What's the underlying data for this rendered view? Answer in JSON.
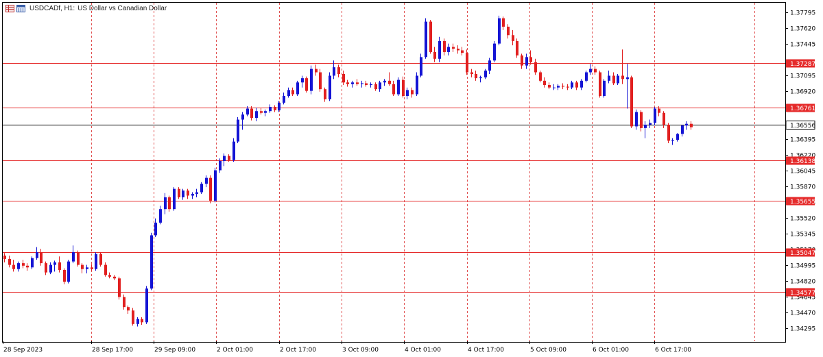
{
  "header": {
    "symbol_timeframe": "USDCADf, H1:",
    "description": "US Dollar vs Canadian Dollar",
    "icons": [
      "table-icon",
      "calendar-icon"
    ]
  },
  "colors": {
    "bull": "#1414d4",
    "bear": "#e11f1f",
    "level_line": "#e52b2b",
    "grid": "#e05050",
    "current_line": "#000000"
  },
  "price_axis": {
    "labels": [
      "1.37795",
      "1.37620",
      "1.37445",
      "1.37095",
      "1.36920",
      "1.36395",
      "1.36220",
      "1.36045",
      "1.35870",
      "1.35695",
      "1.35520",
      "1.35345",
      "1.35170",
      "1.34995",
      "1.34820",
      "1.34645",
      "1.34470",
      "1.34295"
    ]
  },
  "levels": [
    {
      "price": "1.37287",
      "value": 1.37287
    },
    {
      "price": "1.36761",
      "value": 1.36761
    },
    {
      "price": "1.36138",
      "value": 1.36138
    },
    {
      "price": "1.35655",
      "value": 1.35655
    },
    {
      "price": "1.35047",
      "value": 1.35047
    },
    {
      "price": "1.34577",
      "value": 1.34577
    }
  ],
  "current_price": {
    "price": "1.36556",
    "value": 1.36556
  },
  "time_axis": {
    "labels": [
      "28 Sep 2023",
      "28 Sep 17:00",
      "29 Sep 09:00",
      "2 Oct 01:00",
      "2 Oct 17:00",
      "3 Oct 09:00",
      "4 Oct 01:00",
      "4 Oct 17:00",
      "5 Oct 09:00",
      "6 Oct 01:00",
      "6 Oct 17:00"
    ]
  },
  "chart_data": {
    "type": "candlestick",
    "timeframe": "H1",
    "grid": true,
    "y_range": [
      1.3415,
      1.3789
    ],
    "candles": [
      [
        1.3501,
        1.3504,
        1.3493,
        1.3497
      ],
      [
        1.3497,
        1.3501,
        1.3487,
        1.349
      ],
      [
        1.349,
        1.3496,
        1.3482,
        1.3485
      ],
      [
        1.3485,
        1.3494,
        1.3482,
        1.3492
      ],
      [
        1.3492,
        1.3496,
        1.3486,
        1.3489
      ],
      [
        1.3489,
        1.3492,
        1.3483,
        1.3487
      ],
      [
        1.3487,
        1.35,
        1.3485,
        1.3498
      ],
      [
        1.3498,
        1.3511,
        1.3496,
        1.3505
      ],
      [
        1.3505,
        1.3509,
        1.3489,
        1.3492
      ],
      [
        1.3492,
        1.3494,
        1.3478,
        1.3481
      ],
      [
        1.3481,
        1.3493,
        1.3479,
        1.349
      ],
      [
        1.349,
        1.3495,
        1.3482,
        1.3493
      ],
      [
        1.3493,
        1.35,
        1.3481,
        1.3484
      ],
      [
        1.3484,
        1.3486,
        1.3467,
        1.347
      ],
      [
        1.347,
        1.3496,
        1.3468,
        1.3494
      ],
      [
        1.3494,
        1.3513,
        1.3492,
        1.3505
      ],
      [
        1.3505,
        1.3507,
        1.3488,
        1.349
      ],
      [
        1.349,
        1.3492,
        1.348,
        1.3485
      ],
      [
        1.3485,
        1.349,
        1.348,
        1.3487
      ],
      [
        1.3487,
        1.3491,
        1.3483,
        1.3485
      ],
      [
        1.3485,
        1.3505,
        1.3483,
        1.3503
      ],
      [
        1.3503,
        1.3505,
        1.3488,
        1.349
      ],
      [
        1.349,
        1.3493,
        1.3476,
        1.3478
      ],
      [
        1.3478,
        1.3481,
        1.3474,
        1.3476
      ],
      [
        1.3476,
        1.3478,
        1.3472,
        1.3474
      ],
      [
        1.3474,
        1.3476,
        1.3449,
        1.3452
      ],
      [
        1.3452,
        1.3455,
        1.3437,
        1.344
      ],
      [
        1.344,
        1.3442,
        1.3432,
        1.3436
      ],
      [
        1.3436,
        1.3439,
        1.3418,
        1.342
      ],
      [
        1.342,
        1.3428,
        1.3417,
        1.3426
      ],
      [
        1.3426,
        1.3428,
        1.3419,
        1.3422
      ],
      [
        1.3422,
        1.3465,
        1.342,
        1.3462
      ],
      [
        1.3462,
        1.3528,
        1.346,
        1.3525
      ],
      [
        1.3525,
        1.3545,
        1.3523,
        1.354
      ],
      [
        1.354,
        1.356,
        1.3538,
        1.3556
      ],
      [
        1.3556,
        1.3575,
        1.355,
        1.357
      ],
      [
        1.357,
        1.3572,
        1.3553,
        1.3556
      ],
      [
        1.3556,
        1.3582,
        1.3554,
        1.358
      ],
      [
        1.358,
        1.3582,
        1.3568,
        1.357
      ],
      [
        1.357,
        1.358,
        1.3567,
        1.3578
      ],
      [
        1.3578,
        1.358,
        1.3568,
        1.3572
      ],
      [
        1.3572,
        1.3576,
        1.3568,
        1.3574
      ],
      [
        1.3574,
        1.358,
        1.357,
        1.3576
      ],
      [
        1.3576,
        1.3588,
        1.3574,
        1.3586
      ],
      [
        1.3586,
        1.3596,
        1.3582,
        1.3593
      ],
      [
        1.3593,
        1.3596,
        1.3563,
        1.3566
      ],
      [
        1.3566,
        1.3605,
        1.3564,
        1.3602
      ],
      [
        1.3602,
        1.3616,
        1.3599,
        1.3613
      ],
      [
        1.3613,
        1.3622,
        1.3607,
        1.3619
      ],
      [
        1.3619,
        1.3621,
        1.3612,
        1.3614
      ],
      [
        1.3614,
        1.364,
        1.3612,
        1.3636
      ],
      [
        1.3636,
        1.3665,
        1.3634,
        1.3662
      ],
      [
        1.3662,
        1.3671,
        1.365,
        1.3668
      ],
      [
        1.3668,
        1.3678,
        1.3666,
        1.3675
      ],
      [
        1.3675,
        1.3678,
        1.3661,
        1.3664
      ],
      [
        1.3664,
        1.3676,
        1.366,
        1.3672
      ],
      [
        1.3672,
        1.3676,
        1.3668,
        1.367
      ],
      [
        1.367,
        1.3674,
        1.3666,
        1.3672
      ],
      [
        1.3672,
        1.368,
        1.367,
        1.3677
      ],
      [
        1.3677,
        1.3679,
        1.3671,
        1.3673
      ],
      [
        1.3673,
        1.3684,
        1.3671,
        1.3682
      ],
      [
        1.3682,
        1.3694,
        1.368,
        1.369
      ],
      [
        1.369,
        1.37,
        1.3688,
        1.3697
      ],
      [
        1.3697,
        1.37,
        1.369,
        1.3692
      ],
      [
        1.3692,
        1.3708,
        1.369,
        1.3706
      ],
      [
        1.3706,
        1.3714,
        1.37,
        1.3711
      ],
      [
        1.3711,
        1.3713,
        1.3694,
        1.3696
      ],
      [
        1.3696,
        1.3726,
        1.3692,
        1.3722
      ],
      [
        1.3722,
        1.3727,
        1.3714,
        1.3718
      ],
      [
        1.3718,
        1.3722,
        1.3695,
        1.3698
      ],
      [
        1.3698,
        1.37,
        1.3683,
        1.3686
      ],
      [
        1.3686,
        1.3718,
        1.3684,
        1.3714
      ],
      [
        1.3714,
        1.3732,
        1.371,
        1.3724
      ],
      [
        1.3724,
        1.3727,
        1.3712,
        1.3716
      ],
      [
        1.3716,
        1.372,
        1.3703,
        1.3706
      ],
      [
        1.3706,
        1.3709,
        1.3701,
        1.3704
      ],
      [
        1.3704,
        1.3708,
        1.37,
        1.3706
      ],
      [
        1.3706,
        1.371,
        1.3702,
        1.3704
      ],
      [
        1.3704,
        1.3708,
        1.37,
        1.3705
      ],
      [
        1.3705,
        1.3708,
        1.3701,
        1.3703
      ],
      [
        1.3703,
        1.3706,
        1.37,
        1.3704
      ],
      [
        1.3704,
        1.3706,
        1.3696,
        1.3698
      ],
      [
        1.3698,
        1.3708,
        1.3695,
        1.3706
      ],
      [
        1.3706,
        1.371,
        1.3702,
        1.3708
      ],
      [
        1.3708,
        1.3718,
        1.3702,
        1.3704
      ],
      [
        1.3704,
        1.3708,
        1.369,
        1.3692
      ],
      [
        1.3692,
        1.3712,
        1.369,
        1.3709
      ],
      [
        1.3709,
        1.3713,
        1.3688,
        1.369
      ],
      [
        1.369,
        1.37,
        1.3686,
        1.3697
      ],
      [
        1.3697,
        1.37,
        1.3688,
        1.3692
      ],
      [
        1.3692,
        1.3718,
        1.369,
        1.3714
      ],
      [
        1.3714,
        1.374,
        1.3712,
        1.3736
      ],
      [
        1.3736,
        1.3782,
        1.3734,
        1.3778
      ],
      [
        1.3778,
        1.378,
        1.374,
        1.3742
      ],
      [
        1.3742,
        1.3748,
        1.373,
        1.3734
      ],
      [
        1.3734,
        1.376,
        1.373,
        1.3755
      ],
      [
        1.3755,
        1.3758,
        1.3738,
        1.3742
      ],
      [
        1.3742,
        1.3752,
        1.3738,
        1.3748
      ],
      [
        1.3748,
        1.3752,
        1.3742,
        1.3746
      ],
      [
        1.3746,
        1.375,
        1.374,
        1.3744
      ],
      [
        1.3744,
        1.3748,
        1.3738,
        1.3741
      ],
      [
        1.3741,
        1.3745,
        1.3715,
        1.3718
      ],
      [
        1.3718,
        1.3722,
        1.3712,
        1.3716
      ],
      [
        1.3716,
        1.372,
        1.3708,
        1.3711
      ],
      [
        1.3711,
        1.3714,
        1.3706,
        1.3712
      ],
      [
        1.3712,
        1.3722,
        1.371,
        1.372
      ],
      [
        1.372,
        1.3735,
        1.3716,
        1.3732
      ],
      [
        1.3732,
        1.3755,
        1.373,
        1.3752
      ],
      [
        1.3752,
        1.3785,
        1.375,
        1.3782
      ],
      [
        1.3782,
        1.3784,
        1.3768,
        1.3772
      ],
      [
        1.3772,
        1.3775,
        1.3758,
        1.3762
      ],
      [
        1.3762,
        1.3768,
        1.375,
        1.3755
      ],
      [
        1.3755,
        1.3758,
        1.3735,
        1.3738
      ],
      [
        1.3738,
        1.374,
        1.3722,
        1.3726
      ],
      [
        1.3726,
        1.374,
        1.3722,
        1.3736
      ],
      [
        1.3736,
        1.3744,
        1.3727,
        1.373
      ],
      [
        1.373,
        1.3734,
        1.3715,
        1.3718
      ],
      [
        1.3718,
        1.372,
        1.3706,
        1.3708
      ],
      [
        1.3708,
        1.3712,
        1.37,
        1.3703
      ],
      [
        1.3703,
        1.3706,
        1.3698,
        1.37
      ],
      [
        1.37,
        1.3704,
        1.3697,
        1.37
      ],
      [
        1.37,
        1.3704,
        1.3697,
        1.3702
      ],
      [
        1.3702,
        1.3705,
        1.3698,
        1.3701
      ],
      [
        1.3701,
        1.3704,
        1.3697,
        1.37
      ],
      [
        1.37,
        1.3708,
        1.3698,
        1.3706
      ],
      [
        1.3706,
        1.3708,
        1.3697,
        1.37
      ],
      [
        1.37,
        1.371,
        1.3697,
        1.3708
      ],
      [
        1.3708,
        1.372,
        1.3706,
        1.3718
      ],
      [
        1.3718,
        1.3728,
        1.3715,
        1.3722
      ],
      [
        1.3722,
        1.3725,
        1.3715,
        1.3718
      ],
      [
        1.3718,
        1.372,
        1.3688,
        1.369
      ],
      [
        1.369,
        1.371,
        1.3688,
        1.3708
      ],
      [
        1.3708,
        1.372,
        1.3705,
        1.3714
      ],
      [
        1.3714,
        1.3718,
        1.3703,
        1.3705
      ],
      [
        1.3705,
        1.3716,
        1.3703,
        1.3714
      ],
      [
        1.3714,
        1.3745,
        1.3704,
        1.371
      ],
      [
        1.371,
        1.3728,
        1.3675,
        1.3712
      ],
      [
        1.3712,
        1.3714,
        1.3652,
        1.3654
      ],
      [
        1.3654,
        1.3674,
        1.365,
        1.3671
      ],
      [
        1.3671,
        1.3673,
        1.3648,
        1.3652
      ],
      [
        1.3652,
        1.366,
        1.364,
        1.3656
      ],
      [
        1.3656,
        1.3662,
        1.3652,
        1.3658
      ],
      [
        1.3658,
        1.3677,
        1.3655,
        1.3675
      ],
      [
        1.3675,
        1.3678,
        1.3666,
        1.367
      ],
      [
        1.367,
        1.3672,
        1.3652,
        1.3656
      ],
      [
        1.3656,
        1.3658,
        1.3634,
        1.3637
      ],
      [
        1.3637,
        1.364,
        1.3632,
        1.3638
      ],
      [
        1.3638,
        1.3646,
        1.3636,
        1.3645
      ],
      [
        1.3645,
        1.3656,
        1.3642,
        1.3655
      ],
      [
        1.3655,
        1.366,
        1.365,
        1.3657
      ],
      [
        1.3657,
        1.366,
        1.365,
        1.3653
      ]
    ]
  }
}
